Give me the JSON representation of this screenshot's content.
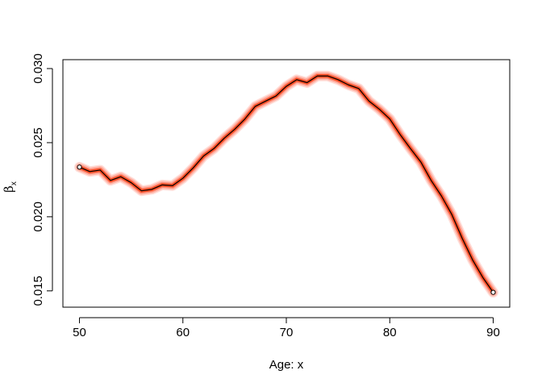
{
  "chart_data": {
    "type": "line",
    "title": "",
    "xlabel": "Age: x",
    "ylabel": "β",
    "ylabel_subscript": "x",
    "xlim": [
      48.4,
      91.6
    ],
    "ylim": [
      0.0139,
      0.0306
    ],
    "x_ticks": [
      50,
      60,
      70,
      80,
      90
    ],
    "x_tick_labels": [
      "50",
      "60",
      "70",
      "80",
      "90"
    ],
    "y_ticks": [
      0.015,
      0.02,
      0.025,
      0.03
    ],
    "y_tick_labels": [
      "0.015",
      "0.020",
      "0.025",
      "0.030"
    ],
    "grid": false,
    "legend": "none",
    "colors": {
      "band": "#ff4a2a",
      "band_core": "#ff3300",
      "line": "#000000",
      "axis": "#000000"
    },
    "series": [
      {
        "x": [
          50,
          51,
          52,
          53,
          54,
          55,
          56,
          57,
          58,
          59,
          60,
          61,
          62,
          63,
          64,
          65,
          66,
          67,
          68,
          69,
          70,
          71,
          72,
          73,
          74,
          75,
          76,
          77,
          78,
          79,
          80,
          81,
          82,
          83,
          84,
          85,
          86,
          87,
          88,
          89,
          90
        ],
        "values": [
          0.02335,
          0.02305,
          0.02315,
          0.02245,
          0.0227,
          0.0223,
          0.02175,
          0.02185,
          0.02215,
          0.0221,
          0.0226,
          0.0233,
          0.0241,
          0.0246,
          0.0253,
          0.0259,
          0.0266,
          0.02745,
          0.0278,
          0.02815,
          0.0288,
          0.02925,
          0.02905,
          0.0295,
          0.0295,
          0.02925,
          0.0289,
          0.02865,
          0.0278,
          0.02725,
          0.0266,
          0.02555,
          0.0246,
          0.0237,
          0.02245,
          0.0214,
          0.02015,
          0.01855,
          0.0171,
          0.0159,
          0.0149
        ]
      }
    ],
    "markers": [
      {
        "x": 50,
        "y": 0.02335
      },
      {
        "x": 90,
        "y": 0.0149
      }
    ]
  }
}
